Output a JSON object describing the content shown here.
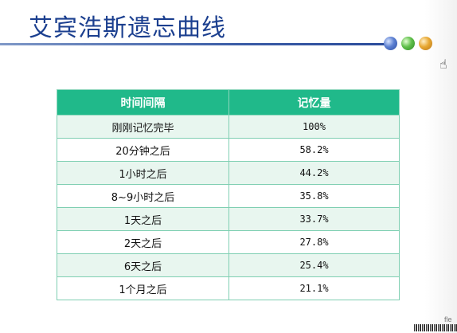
{
  "slide": {
    "title": "艾宾浩斯遗忘曲线",
    "brand": "fle"
  },
  "table": {
    "headers": [
      "时间间隔",
      "记忆量"
    ],
    "rows": [
      {
        "interval": "刚刚记忆完毕",
        "retention": "100%"
      },
      {
        "interval": "20分钟之后",
        "retention": "58.2%"
      },
      {
        "interval": "1小时之后",
        "retention": "44.2%"
      },
      {
        "interval": "8~9小时之后",
        "retention": "35.8%"
      },
      {
        "interval": "1天之后",
        "retention": "33.7%"
      },
      {
        "interval": "2天之后",
        "retention": "27.8%"
      },
      {
        "interval": "6天之后",
        "retention": "25.4%"
      },
      {
        "interval": "1个月之后",
        "retention": "21.1%"
      }
    ]
  },
  "decorations": {
    "dot_colors": [
      "#4a6fc9",
      "#4fb13c",
      "#e09a2a"
    ],
    "cursor_icon": "hand-pointer-icon"
  }
}
